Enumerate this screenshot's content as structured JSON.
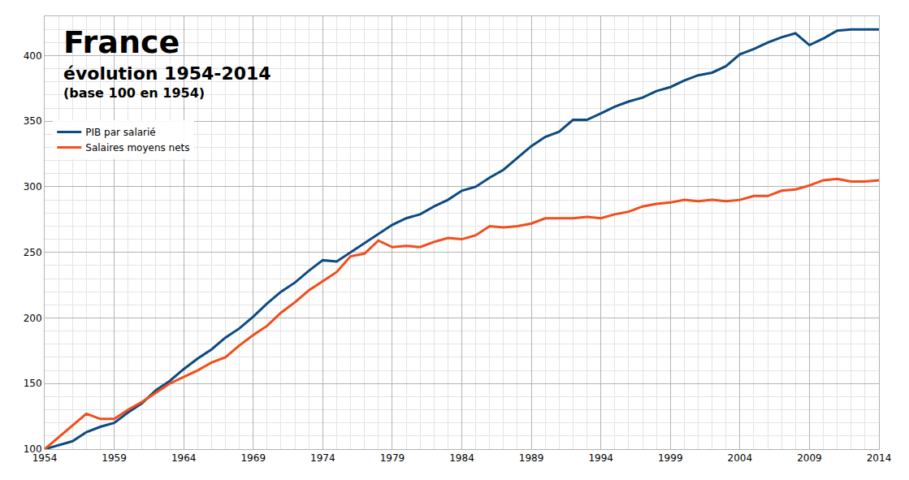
{
  "chart_data": {
    "type": "line",
    "title": "France",
    "subtitle": "évolution 1954-2014",
    "annotations": [
      "(base 100 en 1954)"
    ],
    "x": [
      1954,
      1955,
      1956,
      1957,
      1958,
      1959,
      1960,
      1961,
      1962,
      1963,
      1964,
      1965,
      1966,
      1967,
      1968,
      1969,
      1970,
      1971,
      1972,
      1973,
      1974,
      1975,
      1976,
      1977,
      1978,
      1979,
      1980,
      1981,
      1982,
      1983,
      1984,
      1985,
      1986,
      1987,
      1988,
      1989,
      1990,
      1991,
      1992,
      1993,
      1994,
      1995,
      1996,
      1997,
      1998,
      1999,
      2000,
      2001,
      2002,
      2003,
      2004,
      2005,
      2006,
      2007,
      2008,
      2009,
      2010,
      2011,
      2012,
      2013,
      2014
    ],
    "series": [
      {
        "name": "PIB par salarié",
        "color": "#0c4a82",
        "values": [
          100,
          103,
          106,
          113,
          117,
          120,
          128,
          135,
          145,
          152,
          161,
          169,
          176,
          185,
          192,
          201,
          211,
          220,
          227,
          236,
          244,
          243,
          250,
          257,
          264,
          271,
          276,
          279,
          285,
          290,
          297,
          300,
          307,
          313,
          322,
          331,
          338,
          342,
          351,
          351,
          356,
          361,
          365,
          368,
          373,
          376,
          381,
          385,
          387,
          392,
          401,
          405,
          410,
          414,
          417,
          408,
          413,
          419,
          420,
          420,
          420
        ]
      },
      {
        "name": "Salaires moyens nets",
        "color": "#f24d1a",
        "values": [
          100,
          109,
          118,
          127,
          123,
          123,
          130,
          136,
          143,
          150,
          155,
          160,
          166,
          170,
          179,
          187,
          194,
          204,
          212,
          221,
          228,
          235,
          247,
          249,
          259,
          254,
          255,
          254,
          258,
          261,
          260,
          263,
          270,
          269,
          270,
          272,
          276,
          276,
          276,
          277,
          276,
          279,
          281,
          285,
          287,
          288,
          290,
          289,
          290,
          289,
          290,
          293,
          293,
          297,
          298,
          301,
          305,
          306,
          304,
          304,
          305
        ]
      }
    ],
    "xlim": [
      1954,
      2014
    ],
    "xticks": [
      1954,
      1959,
      1964,
      1969,
      1974,
      1979,
      1984,
      1989,
      1994,
      1999,
      2004,
      2009,
      2014
    ],
    "ylim": [
      100,
      430
    ],
    "yticks": [
      100,
      150,
      200,
      250,
      300,
      350,
      400
    ],
    "grid": true,
    "legend": "upper left"
  }
}
